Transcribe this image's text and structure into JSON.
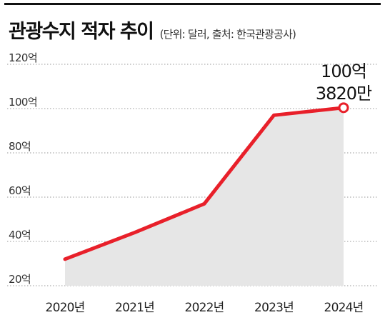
{
  "header": {
    "title": "관광수지 적자 추이",
    "subtitle": "(단위: 달러, 출처: 한국관광공사)"
  },
  "chart_data": {
    "type": "area",
    "title": "관광수지 적자 추이",
    "subtitle": "(단위: 달러, 출처: 한국관광공사)",
    "categories": [
      "2020년",
      "2021년",
      "2022년",
      "2023년",
      "2024년"
    ],
    "series": [
      {
        "values": [
          32,
          44,
          57,
          97,
          100.382
        ]
      }
    ],
    "yticks": [
      {
        "value": 120,
        "label": "120억"
      },
      {
        "value": 100,
        "label": "100억"
      },
      {
        "value": 80,
        "label": "80억"
      },
      {
        "value": 60,
        "label": "60억"
      },
      {
        "value": 40,
        "label": "40억"
      },
      {
        "value": 20,
        "label": "20억"
      }
    ],
    "ylim": [
      20,
      120
    ],
    "grid": "horizontal-dotted",
    "annotation": {
      "line1": "100억",
      "line2": "3820만"
    },
    "colors": {
      "line": "#e8202a",
      "area": "#e6e6e6",
      "grid": "#999999",
      "marker_fill": "#ffffff"
    }
  }
}
